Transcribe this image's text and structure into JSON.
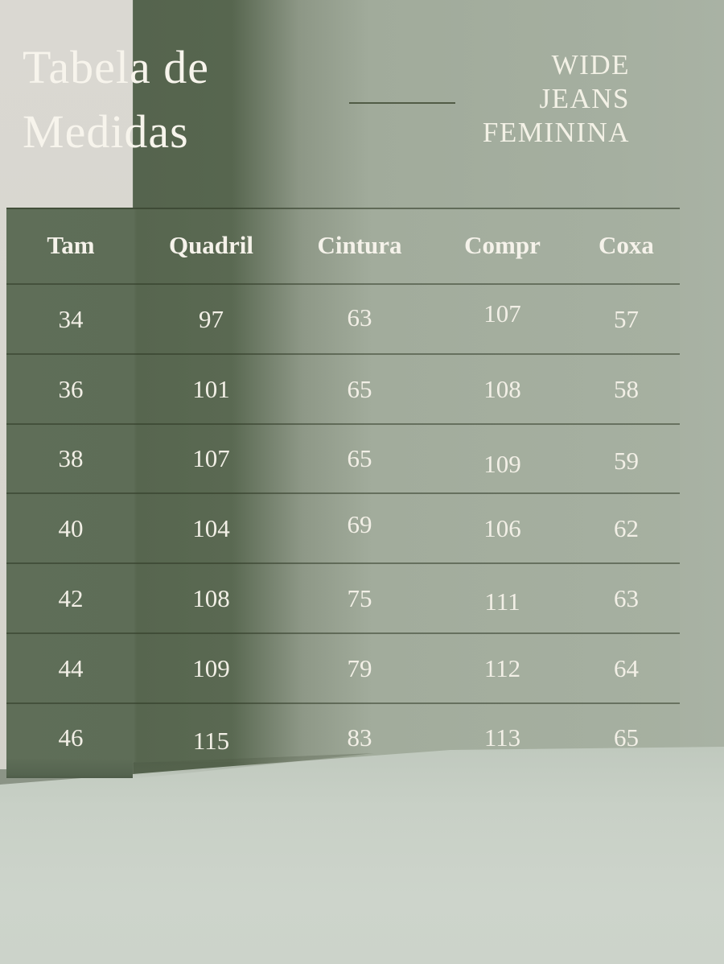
{
  "header": {
    "title_line1": "Tabela de",
    "title_line2": "Medidas",
    "product_line1": "WIDE",
    "product_line2": "JEANS",
    "product_line3": "FEMININA"
  },
  "table": {
    "headers": [
      "Tam",
      "Quadril",
      "Cintura",
      "Compr",
      "Coxa"
    ],
    "rows": [
      [
        "34",
        "97",
        "63",
        "107",
        "57"
      ],
      [
        "36",
        "101",
        "65",
        "108",
        "58"
      ],
      [
        "38",
        "107",
        "65",
        "109",
        "59"
      ],
      [
        "40",
        "104",
        "69",
        "106",
        "62"
      ],
      [
        "42",
        "108",
        "75",
        "111",
        "63"
      ],
      [
        "44",
        "109",
        "79",
        "112",
        "64"
      ],
      [
        "46",
        "115",
        "83",
        "113",
        "65"
      ]
    ]
  },
  "chart_data": {
    "type": "table",
    "title": "Tabela de Medidas",
    "subtitle": "WIDE JEANS FEMININA",
    "columns": [
      "Tam",
      "Quadril",
      "Cintura",
      "Compr",
      "Coxa"
    ],
    "rows": [
      {
        "Tam": 34,
        "Quadril": 97,
        "Cintura": 63,
        "Compr": 107,
        "Coxa": 57
      },
      {
        "Tam": 36,
        "Quadril": 101,
        "Cintura": 65,
        "Compr": 108,
        "Coxa": 58
      },
      {
        "Tam": 38,
        "Quadril": 107,
        "Cintura": 65,
        "Compr": 109,
        "Coxa": 59
      },
      {
        "Tam": 40,
        "Quadril": 104,
        "Cintura": 69,
        "Compr": 106,
        "Coxa": 62
      },
      {
        "Tam": 42,
        "Quadril": 108,
        "Cintura": 75,
        "Compr": 111,
        "Coxa": 63
      },
      {
        "Tam": 44,
        "Quadril": 109,
        "Cintura": 79,
        "Compr": 112,
        "Coxa": 64
      },
      {
        "Tam": 46,
        "Quadril": 115,
        "Cintura": 83,
        "Compr": 113,
        "Coxa": 65
      }
    ]
  },
  "colors": {
    "wall_dark_green": "#57664f",
    "wall_light_sage": "#a6b0a1",
    "left_panel_beige": "#dad8d2",
    "floor_sage": "#cdd4cb",
    "text_offwhite": "#f2efe6",
    "line_dark_olive": "#2a3420"
  }
}
